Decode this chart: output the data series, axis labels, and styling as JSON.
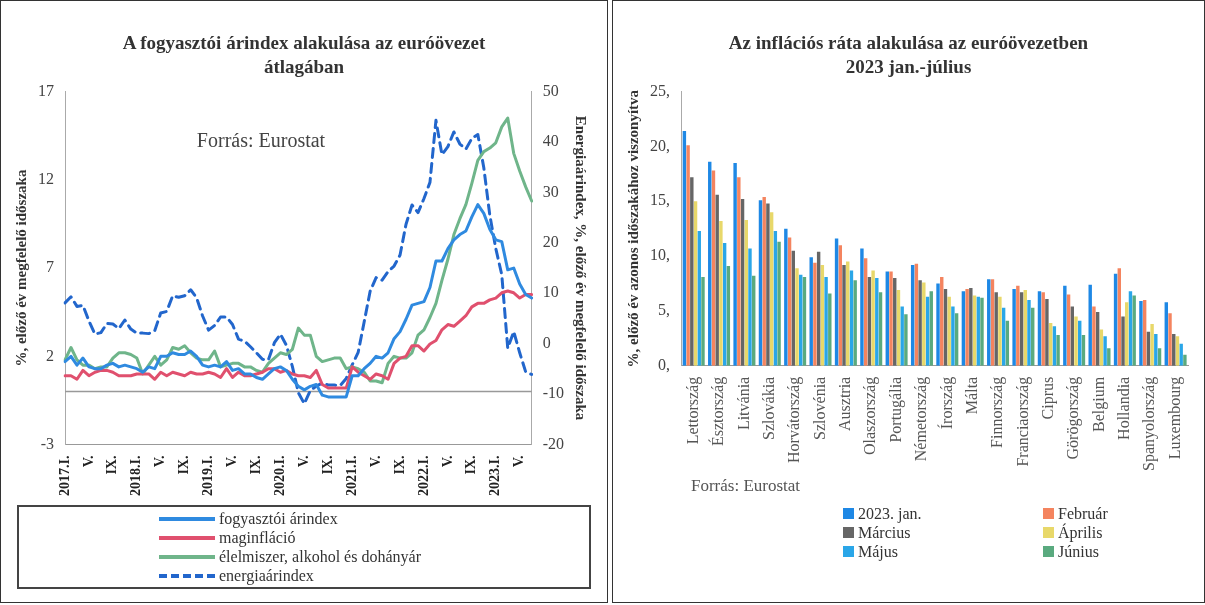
{
  "chart_data": [
    {
      "type": "line",
      "title": "A fogyasztói árindex alakulása az euróövezet átlagában",
      "ylabel": "%, előző év megfelelő időszaka",
      "y2label": "Energiaárindex, %, előző év megfelelő időszaka",
      "legend": "bottom",
      "marker": "none",
      "line_style": "solid",
      "categories": [
        "2017.I.",
        null,
        null,
        null,
        "V.",
        null,
        null,
        null,
        "IX.",
        null,
        null,
        null,
        "2018.I.",
        null,
        null,
        null,
        "V.",
        null,
        null,
        null,
        "IX.",
        null,
        null,
        null,
        "2019.I.",
        null,
        null,
        null,
        "V.",
        null,
        null,
        null,
        "IX.",
        null,
        null,
        null,
        "2020.I.",
        null,
        null,
        null,
        "V.",
        null,
        null,
        null,
        "IX.",
        null,
        null,
        null,
        "2021.I.",
        null,
        null,
        null,
        "V.",
        null,
        null,
        null,
        "IX.",
        null,
        null,
        null,
        "2022.I.",
        null,
        null,
        null,
        "V.",
        null,
        null,
        null,
        "IX.",
        null,
        null,
        null,
        "2023.I.",
        null,
        null,
        null,
        "V.",
        null,
        null
      ],
      "series": [
        {
          "name": "fogyasztói árindex",
          "color": "#2f8ae0",
          "values": [
            1.7,
            2.0,
            1.5,
            1.9,
            1.4,
            1.3,
            1.3,
            1.5,
            1.6,
            1.4,
            1.5,
            1.4,
            1.3,
            1.1,
            1.4,
            1.3,
            2.0,
            2.0,
            2.2,
            2.1,
            2.1,
            2.3,
            2.0,
            1.5,
            1.4,
            1.5,
            1.4,
            1.7,
            1.2,
            1.3,
            1.0,
            1.0,
            0.8,
            0.7,
            1.0,
            1.3,
            1.4,
            1.2,
            0.7,
            0.3,
            0.1,
            0.3,
            0.4,
            -0.2,
            -0.3,
            -0.3,
            -0.3,
            -0.3,
            0.9,
            0.9,
            1.3,
            1.6,
            2.0,
            1.9,
            2.2,
            3.0,
            3.4,
            4.1,
            4.9,
            5.0,
            5.1,
            5.9,
            7.4,
            7.4,
            8.1,
            8.6,
            8.9,
            9.1,
            9.9,
            10.6,
            10.1,
            9.2,
            8.6,
            8.5,
            6.9,
            7.0,
            6.1,
            5.5,
            5.3
          ]
        },
        {
          "name": "maginfláció",
          "color": "#e0506e",
          "values": [
            0.9,
            0.9,
            0.7,
            1.2,
            0.9,
            1.1,
            1.2,
            1.2,
            1.1,
            0.9,
            0.9,
            0.9,
            1.0,
            1.0,
            1.0,
            0.7,
            1.1,
            0.9,
            1.1,
            1.0,
            0.9,
            1.1,
            1.0,
            1.0,
            1.1,
            1.0,
            0.8,
            1.3,
            0.8,
            1.1,
            0.9,
            0.9,
            1.0,
            1.1,
            1.3,
            1.3,
            1.1,
            1.2,
            1.0,
            0.9,
            0.9,
            0.8,
            1.2,
            0.4,
            0.2,
            0.2,
            0.2,
            0.2,
            1.4,
            1.1,
            0.9,
            0.7,
            1.0,
            0.9,
            0.7,
            1.6,
            1.9,
            2.0,
            2.6,
            2.6,
            2.3,
            2.7,
            2.9,
            3.5,
            3.8,
            3.7,
            4.0,
            4.3,
            4.8,
            5.0,
            5.0,
            5.2,
            5.3,
            5.6,
            5.7,
            5.6,
            5.3,
            5.5,
            5.5
          ]
        },
        {
          "name": "élelmiszer, alkohol és dohányár",
          "color": "#6fb58a",
          "values": [
            1.8,
            2.5,
            1.8,
            1.5,
            1.5,
            1.3,
            1.4,
            1.4,
            1.9,
            2.2,
            2.2,
            2.1,
            1.9,
            1.0,
            1.5,
            2.0,
            1.5,
            1.8,
            2.5,
            2.4,
            2.6,
            2.2,
            1.9,
            1.8,
            1.8,
            2.3,
            1.4,
            1.5,
            1.6,
            1.6,
            1.4,
            1.4,
            1.2,
            1.1,
            1.6,
            1.9,
            2.2,
            2.1,
            2.4,
            3.6,
            3.2,
            3.2,
            2.0,
            1.7,
            1.8,
            1.9,
            1.9,
            1.3,
            1.4,
            1.3,
            1.1,
            0.6,
            0.6,
            0.5,
            1.6,
            2.0,
            1.9,
            1.9,
            2.2,
            3.2,
            3.5,
            4.2,
            5.0,
            6.3,
            7.5,
            8.9,
            9.8,
            10.6,
            11.8,
            13.1,
            13.6,
            13.8,
            14.1,
            15.0,
            15.5,
            13.5,
            12.5,
            11.6,
            10.8
          ]
        },
        {
          "name": "energiaárindex",
          "color": "#2266cc",
          "axis": "y2",
          "line_style": "dashed",
          "values": [
            8.1,
            9.3,
            7.4,
            7.6,
            4.5,
            1.9,
            2.2,
            4.0,
            3.9,
            3.0,
            4.7,
            2.9,
            2.1,
            2.1,
            2.0,
            2.6,
            6.1,
            6.4,
            9.5,
            9.2,
            9.5,
            10.7,
            9.1,
            5.5,
            2.7,
            3.6,
            5.3,
            5.3,
            3.8,
            0.9,
            0.5,
            -0.6,
            -1.8,
            -3.1,
            -3.2,
            0.2,
            1.9,
            -0.3,
            -4.5,
            -9.7,
            -11.9,
            -9.3,
            -8.4,
            -7.8,
            -8.2,
            -8.2,
            -8.3,
            -6.9,
            -4.2,
            -1.7,
            4.3,
            10.4,
            13.1,
            12.6,
            14.3,
            15.4,
            17.6,
            23.7,
            27.5,
            26.0,
            28.8,
            32.0,
            44.3,
            37.5,
            39.1,
            42.0,
            39.6,
            38.6,
            40.7,
            41.5,
            34.9,
            25.5,
            18.9,
            13.7,
            -0.9,
            2.4,
            -1.8,
            -5.6,
            -6.1
          ]
        }
      ],
      "ylim": [
        -3,
        17
      ],
      "yticks": [
        -3,
        2,
        7,
        12,
        17
      ],
      "y2lim": [
        -20,
        50
      ],
      "y2ticks": [
        -20,
        -10,
        0,
        10,
        20,
        30,
        40,
        50
      ],
      "ref_lines": [
        {
          "axis": "y",
          "value": 0,
          "color": "#999999"
        }
      ],
      "annotations": [
        "Forrás: Eurostat"
      ]
    },
    {
      "type": "bar",
      "title": "Az inflációs ráta alakulása az euróövezetben 2023 jan.-július",
      "ylabel": "%, előző év azonos időszakához viszonyítva",
      "legend": "bottom",
      "categories": [
        "Lettország",
        "Észtország",
        "Litvánia",
        "Szlovákia",
        "Horvátország",
        "Szlovénia",
        "Ausztria",
        "Olaszország",
        "Portugália",
        "Németország",
        "Írország",
        "Málta",
        "Finnország",
        "Franciaország",
        "Ciprus",
        "Görögország",
        "Belgium",
        "Hollandia",
        "Spanyolország",
        "Luxembourg"
      ],
      "series": [
        {
          "name": "2023. jan.",
          "color": "#1e88e5",
          "values": [
            21.4,
            18.6,
            18.5,
            15.1,
            12.5,
            9.9,
            11.6,
            10.7,
            8.6,
            9.2,
            7.5,
            6.8,
            7.9,
            7.0,
            6.8,
            7.3,
            7.4,
            8.4,
            5.9,
            5.8
          ]
        },
        {
          "name": "Február",
          "color": "#f4845f",
          "values": [
            20.1,
            17.8,
            17.2,
            15.4,
            11.7,
            9.4,
            11.0,
            9.8,
            8.6,
            9.3,
            8.1,
            7.0,
            7.9,
            7.3,
            6.7,
            6.5,
            5.4,
            8.9,
            6.0,
            4.8
          ]
        },
        {
          "name": "Március",
          "color": "#666666",
          "values": [
            17.2,
            15.6,
            15.2,
            14.8,
            10.5,
            10.4,
            9.2,
            8.1,
            8.0,
            7.8,
            7.0,
            7.1,
            6.7,
            6.7,
            6.1,
            5.4,
            4.9,
            4.5,
            3.1,
            2.9
          ]
        },
        {
          "name": "Április",
          "color": "#e8d86a",
          "values": [
            15.0,
            13.2,
            13.3,
            14.0,
            8.9,
            9.2,
            9.5,
            8.7,
            6.9,
            7.6,
            6.3,
            6.4,
            6.3,
            6.9,
            3.9,
            4.5,
            3.3,
            5.8,
            3.8,
            2.7
          ]
        },
        {
          "name": "Május",
          "color": "#2aa6e8",
          "values": [
            12.3,
            11.2,
            10.7,
            12.3,
            8.3,
            8.1,
            8.7,
            8.0,
            5.4,
            6.3,
            5.4,
            6.3,
            5.3,
            6.0,
            3.6,
            4.1,
            2.7,
            6.8,
            2.9,
            2.0
          ]
        },
        {
          "name": "Június",
          "color": "#5aaa7f",
          "values": [
            8.1,
            9.1,
            8.2,
            11.3,
            8.1,
            6.6,
            7.8,
            6.7,
            4.7,
            6.8,
            4.8,
            6.2,
            4.1,
            5.3,
            2.8,
            2.8,
            1.6,
            6.4,
            1.6,
            1.0
          ]
        }
      ],
      "ylim": [
        0,
        25
      ],
      "yticks": [
        {
          "value": 0,
          "label": "0,"
        },
        {
          "value": 5,
          "label": "5,"
        },
        {
          "value": 10,
          "label": "10,"
        },
        {
          "value": 15,
          "label": "15,"
        },
        {
          "value": 20,
          "label": "20,"
        },
        {
          "value": 25,
          "label": "25,"
        }
      ],
      "annotations": [
        "Forrás: Eurostat"
      ]
    }
  ]
}
